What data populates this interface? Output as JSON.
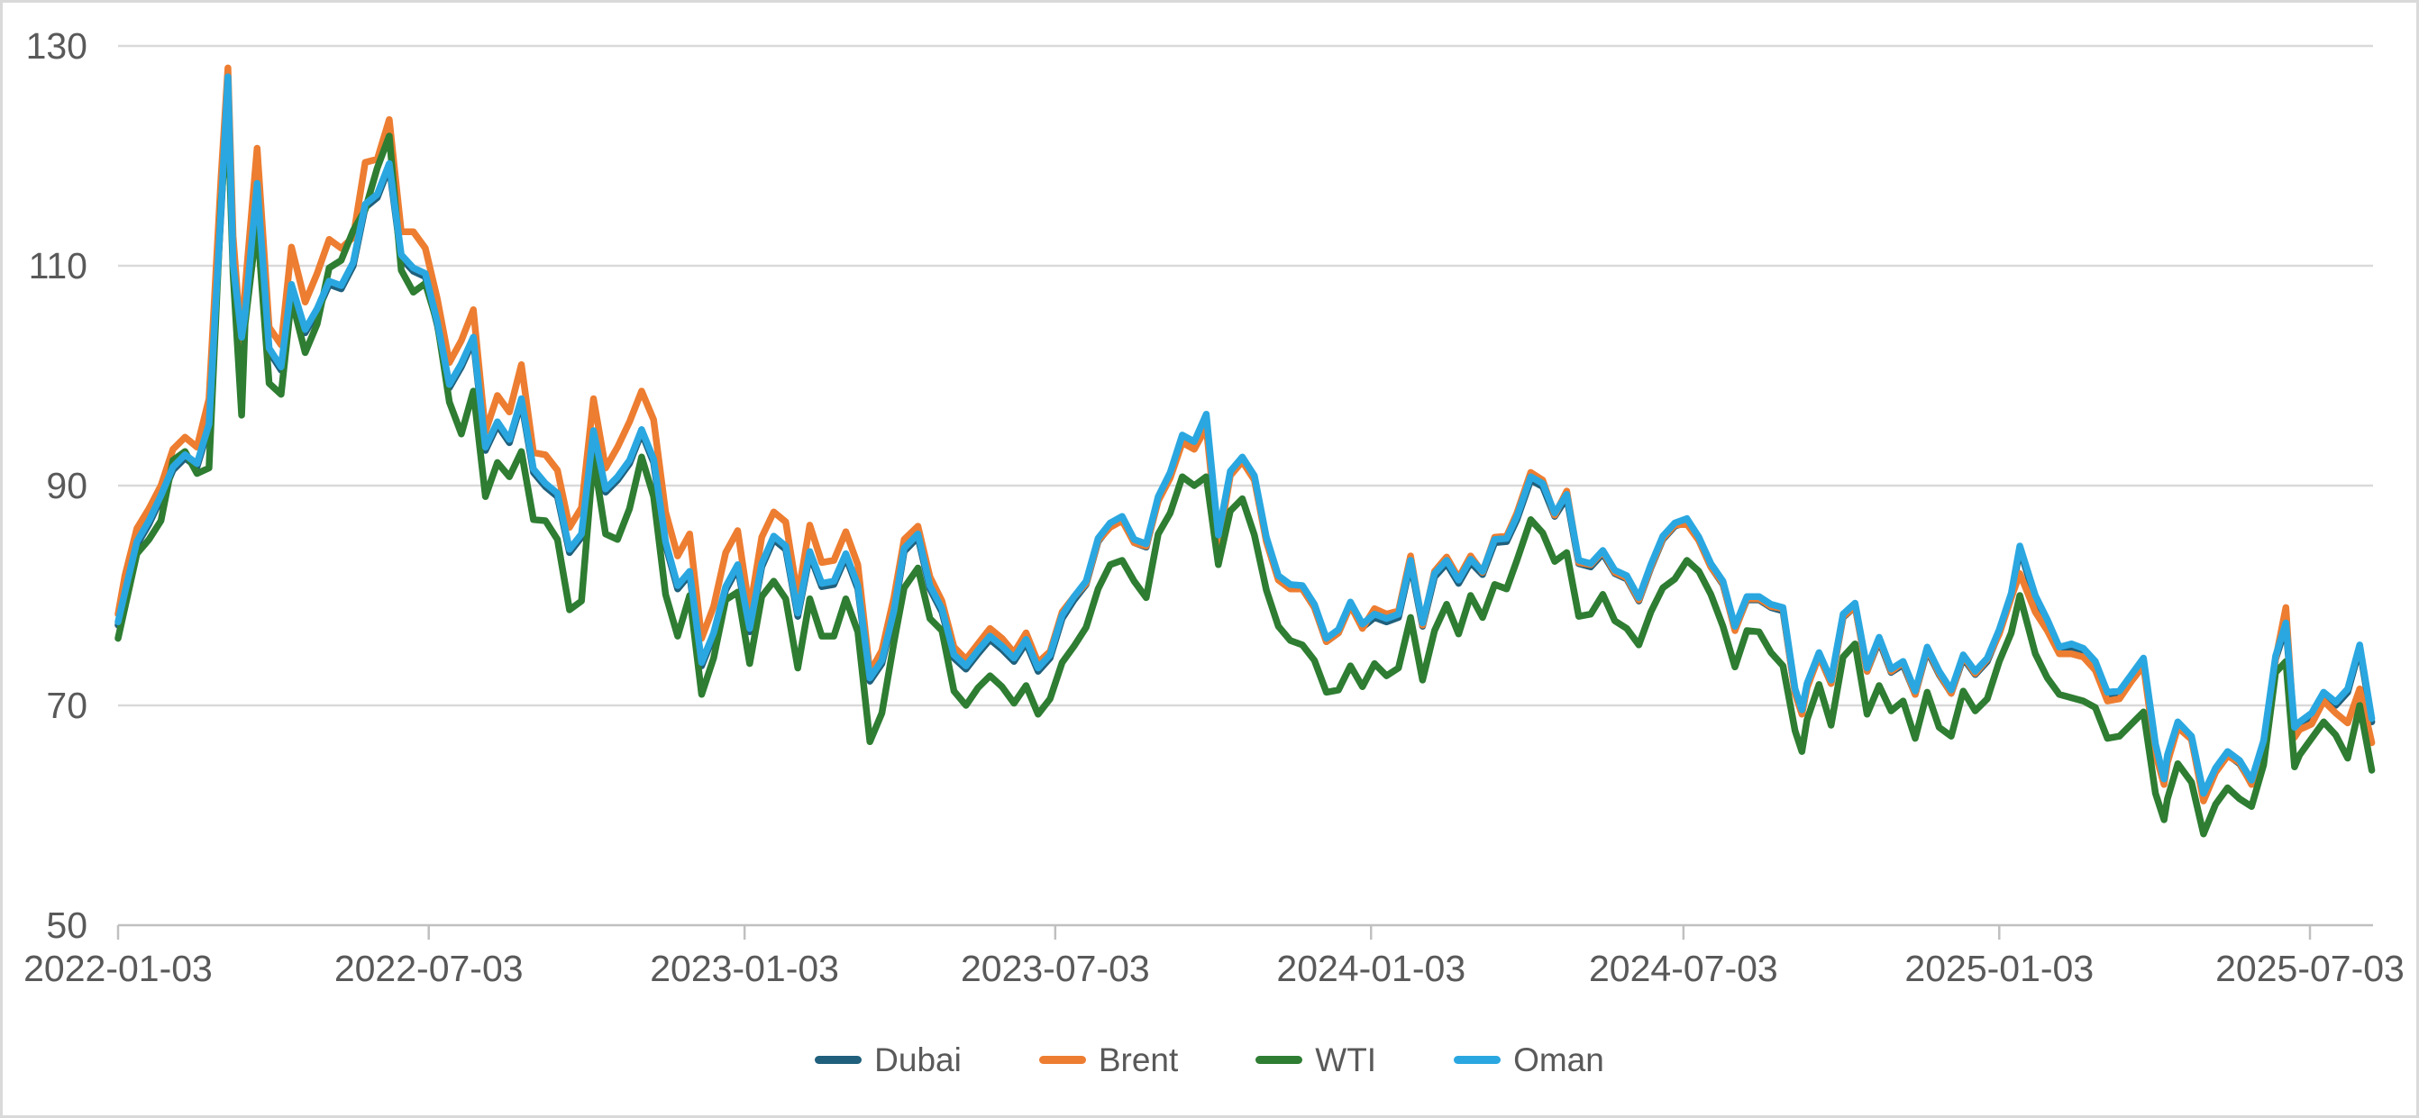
{
  "chart": {
    "background": "#FFFFFF",
    "border_color": "#D9D9D9",
    "grid_color": "#D9D9D9",
    "axis_color": "#C0C0C0",
    "label_color": "#595959"
  },
  "chart_data": {
    "type": "line",
    "title": "",
    "xlabel": "",
    "ylabel": "",
    "ylim": [
      50,
      130
    ],
    "yticks": [
      50,
      70,
      90,
      110,
      130
    ],
    "xticks": [
      "2022-01-03",
      "2022-07-03",
      "2023-01-03",
      "2023-07-03",
      "2024-01-03",
      "2024-07-03",
      "2025-01-03",
      "2025-07-03"
    ],
    "grid": "horizontal",
    "legend_position": "bottom",
    "x": [
      "2022-01-03",
      "2022-01-07",
      "2022-01-14",
      "2022-01-21",
      "2022-01-28",
      "2022-02-04",
      "2022-02-11",
      "2022-02-18",
      "2022-02-25",
      "2022-03-04",
      "2022-03-08",
      "2022-03-11",
      "2022-03-16",
      "2022-03-18",
      "2022-03-25",
      "2022-04-01",
      "2022-04-08",
      "2022-04-14",
      "2022-04-22",
      "2022-04-29",
      "2022-05-06",
      "2022-05-13",
      "2022-05-20",
      "2022-05-27",
      "2022-06-03",
      "2022-06-10",
      "2022-06-17",
      "2022-06-24",
      "2022-07-01",
      "2022-07-08",
      "2022-07-15",
      "2022-07-22",
      "2022-07-29",
      "2022-08-05",
      "2022-08-12",
      "2022-08-19",
      "2022-08-26",
      "2022-09-02",
      "2022-09-09",
      "2022-09-16",
      "2022-09-23",
      "2022-09-30",
      "2022-10-07",
      "2022-10-14",
      "2022-10-21",
      "2022-10-28",
      "2022-11-04",
      "2022-11-11",
      "2022-11-18",
      "2022-11-25",
      "2022-12-02",
      "2022-12-09",
      "2022-12-16",
      "2022-12-23",
      "2022-12-30",
      "2023-01-06",
      "2023-01-13",
      "2023-01-20",
      "2023-01-27",
      "2023-02-03",
      "2023-02-10",
      "2023-02-17",
      "2023-02-24",
      "2023-03-03",
      "2023-03-10",
      "2023-03-17",
      "2023-03-24",
      "2023-03-31",
      "2023-04-06",
      "2023-04-14",
      "2023-04-21",
      "2023-04-28",
      "2023-05-05",
      "2023-05-12",
      "2023-05-19",
      "2023-05-26",
      "2023-06-02",
      "2023-06-09",
      "2023-06-16",
      "2023-06-23",
      "2023-06-30",
      "2023-07-07",
      "2023-07-14",
      "2023-07-21",
      "2023-07-28",
      "2023-08-04",
      "2023-08-11",
      "2023-08-18",
      "2023-08-25",
      "2023-09-01",
      "2023-09-08",
      "2023-09-15",
      "2023-09-22",
      "2023-09-29",
      "2023-10-06",
      "2023-10-13",
      "2023-10-20",
      "2023-10-27",
      "2023-11-03",
      "2023-11-10",
      "2023-11-17",
      "2023-11-24",
      "2023-12-01",
      "2023-12-08",
      "2023-12-15",
      "2023-12-22",
      "2023-12-29",
      "2024-01-05",
      "2024-01-12",
      "2024-01-19",
      "2024-01-26",
      "2024-02-02",
      "2024-02-09",
      "2024-02-16",
      "2024-02-23",
      "2024-03-01",
      "2024-03-08",
      "2024-03-15",
      "2024-03-22",
      "2024-03-28",
      "2024-04-05",
      "2024-04-12",
      "2024-04-19",
      "2024-04-26",
      "2024-05-03",
      "2024-05-10",
      "2024-05-17",
      "2024-05-24",
      "2024-05-31",
      "2024-06-07",
      "2024-06-14",
      "2024-06-21",
      "2024-06-28",
      "2024-07-05",
      "2024-07-12",
      "2024-07-19",
      "2024-07-26",
      "2024-08-02",
      "2024-08-09",
      "2024-08-16",
      "2024-08-23",
      "2024-08-30",
      "2024-09-06",
      "2024-09-10",
      "2024-09-13",
      "2024-09-20",
      "2024-09-27",
      "2024-10-04",
      "2024-10-11",
      "2024-10-18",
      "2024-10-25",
      "2024-11-01",
      "2024-11-08",
      "2024-11-15",
      "2024-11-22",
      "2024-11-29",
      "2024-12-06",
      "2024-12-13",
      "2024-12-20",
      "2024-12-27",
      "2025-01-03",
      "2025-01-10",
      "2025-01-15",
      "2025-01-24",
      "2025-01-31",
      "2025-02-07",
      "2025-02-14",
      "2025-02-21",
      "2025-02-28",
      "2025-03-07",
      "2025-03-14",
      "2025-03-21",
      "2025-03-28",
      "2025-04-04",
      "2025-04-09",
      "2025-04-11",
      "2025-04-17",
      "2025-04-25",
      "2025-05-02",
      "2025-05-09",
      "2025-05-16",
      "2025-05-23",
      "2025-05-30",
      "2025-06-06",
      "2025-06-13",
      "2025-06-19",
      "2025-06-24",
      "2025-06-27",
      "2025-07-04",
      "2025-07-11",
      "2025-07-18",
      "2025-07-25",
      "2025-08-01",
      "2025-08-08"
    ],
    "series": [
      {
        "name": "Dubai",
        "color": "#20607C",
        "values": [
          77.3,
          80.0,
          84.6,
          86.5,
          88.8,
          91.4,
          92.5,
          91.7,
          95.3,
          114.9,
          126.9,
          109.9,
          103.2,
          105.2,
          117.2,
          102.2,
          100.5,
          108.0,
          103.9,
          105.8,
          108.3,
          107.9,
          110.0,
          115.3,
          116.2,
          119.0,
          110.7,
          109.5,
          109.0,
          104.6,
          98.9,
          100.8,
          103.2,
          93.2,
          95.5,
          93.9,
          97.6,
          91.2,
          89.9,
          89.0,
          83.9,
          85.3,
          94.7,
          89.4,
          90.5,
          92.0,
          94.8,
          92.1,
          84.6,
          80.6,
          81.9,
          73.6,
          76.3,
          80.5,
          82.5,
          76.7,
          82.6,
          85.1,
          84.2,
          78.1,
          83.7,
          80.8,
          81.0,
          83.5,
          80.6,
          72.2,
          73.8,
          78.3,
          84.0,
          85.3,
          80.6,
          78.5,
          74.3,
          73.3,
          74.7,
          76.0,
          75.1,
          74.0,
          75.7,
          73.1,
          74.3,
          77.9,
          79.6,
          81.0,
          84.9,
          86.3,
          86.9,
          84.8,
          84.4,
          88.7,
          90.9,
          94.3,
          93.7,
          96.2,
          85.2,
          91.0,
          92.3,
          90.6,
          85.0,
          81.5,
          80.7,
          80.6,
          78.9,
          75.8,
          76.6,
          79.1,
          77.1,
          78.0,
          77.6,
          78.0,
          82.9,
          77.2,
          81.7,
          82.9,
          81.1,
          83.0,
          81.9,
          84.8,
          84.9,
          86.9,
          90.5,
          89.9,
          87.2,
          88.9,
          82.9,
          82.6,
          83.8,
          82.0,
          81.5,
          79.5,
          82.5,
          85.1,
          86.3,
          86.7,
          85.0,
          82.6,
          81.0,
          76.9,
          79.6,
          79.6,
          78.9,
          78.6,
          71.2,
          69.3,
          71.7,
          74.5,
          72.0,
          78.0,
          79.0,
          73.1,
          75.9,
          73.0,
          73.7,
          71.0,
          75.0,
          72.8,
          71.1,
          74.3,
          72.8,
          74.0,
          76.6,
          79.9,
          84.2,
          79.7,
          77.5,
          75.0,
          75.3,
          74.9,
          73.7,
          70.9,
          71.0,
          72.5,
          74.0,
          66.2,
          63.0,
          65.2,
          68.2,
          66.9,
          61.7,
          64.0,
          65.5,
          64.7,
          62.9,
          66.5,
          74.2,
          77.2,
          67.7,
          68.2,
          69.0,
          70.9,
          70.0,
          71.2,
          75.2,
          68.5
        ]
      },
      {
        "name": "Brent",
        "color": "#ED7D31",
        "values": [
          78.3,
          81.8,
          86.1,
          87.9,
          90.0,
          93.3,
          94.4,
          93.5,
          97.9,
          118.1,
          128.0,
          112.7,
          102.5,
          107.9,
          120.7,
          104.4,
          102.8,
          111.7,
          106.7,
          109.3,
          112.4,
          111.6,
          112.6,
          119.4,
          119.7,
          123.3,
          113.1,
          113.1,
          111.6,
          107.0,
          101.2,
          103.2,
          106.0,
          94.9,
          98.2,
          96.7,
          101.0,
          93.0,
          92.8,
          91.4,
          86.2,
          88.0,
          97.9,
          91.6,
          93.5,
          95.8,
          98.6,
          96.0,
          87.6,
          83.6,
          85.6,
          76.1,
          79.0,
          83.9,
          85.9,
          78.6,
          85.3,
          87.6,
          86.7,
          79.9,
          86.4,
          83.0,
          83.2,
          85.8,
          82.8,
          73.0,
          75.0,
          79.8,
          85.1,
          86.3,
          81.7,
          79.5,
          75.3,
          74.2,
          75.6,
          77.0,
          76.1,
          74.8,
          76.6,
          73.9,
          74.9,
          78.5,
          79.9,
          81.1,
          85.0,
          86.2,
          86.8,
          84.8,
          84.5,
          88.6,
          90.7,
          93.9,
          93.3,
          95.3,
          84.6,
          90.9,
          92.2,
          90.5,
          84.9,
          81.4,
          80.6,
          80.6,
          78.9,
          75.8,
          76.6,
          79.1,
          77.0,
          78.8,
          78.3,
          78.6,
          83.6,
          77.3,
          82.2,
          83.5,
          81.6,
          83.6,
          82.1,
          85.3,
          85.4,
          87.5,
          91.2,
          90.5,
          87.3,
          89.5,
          83.0,
          82.8,
          84.0,
          82.1,
          81.6,
          79.6,
          82.6,
          85.2,
          86.4,
          86.5,
          85.0,
          82.6,
          81.1,
          76.8,
          79.7,
          79.7,
          79.0,
          78.8,
          71.1,
          69.2,
          71.6,
          74.5,
          72.0,
          78.1,
          79.0,
          73.1,
          76.1,
          73.1,
          73.9,
          71.0,
          75.2,
          72.9,
          71.1,
          74.5,
          72.9,
          74.2,
          76.5,
          79.8,
          82.0,
          78.5,
          76.8,
          74.7,
          74.7,
          74.4,
          73.2,
          70.4,
          70.6,
          72.2,
          73.6,
          65.6,
          62.8,
          64.8,
          68.0,
          66.9,
          61.3,
          63.9,
          65.4,
          64.8,
          62.8,
          66.5,
          74.2,
          78.9,
          67.1,
          67.8,
          68.3,
          70.4,
          69.3,
          68.4,
          71.5,
          66.6
        ]
      },
      {
        "name": "WTI",
        "color": "#2E7D32",
        "values": [
          76.1,
          78.9,
          83.8,
          85.1,
          86.8,
          92.3,
          93.1,
          91.1,
          91.6,
          115.7,
          123.7,
          109.3,
          96.4,
          104.7,
          113.9,
          99.3,
          98.3,
          107.0,
          102.1,
          104.7,
          109.8,
          110.5,
          113.2,
          115.1,
          118.9,
          121.8,
          109.6,
          107.6,
          108.4,
          104.8,
          97.6,
          94.7,
          98.6,
          89.0,
          92.1,
          90.8,
          93.1,
          86.9,
          86.8,
          85.1,
          78.7,
          79.5,
          92.6,
          85.6,
          85.1,
          87.9,
          92.6,
          89.0,
          80.1,
          76.3,
          80.0,
          71.0,
          74.3,
          79.6,
          80.3,
          73.8,
          79.9,
          81.3,
          79.7,
          73.4,
          79.7,
          76.3,
          76.3,
          79.7,
          76.7,
          66.7,
          69.3,
          75.7,
          80.7,
          82.5,
          77.9,
          76.8,
          71.3,
          70.0,
          71.6,
          72.7,
          71.7,
          70.2,
          71.8,
          69.2,
          70.6,
          73.9,
          75.4,
          77.1,
          80.6,
          82.8,
          83.2,
          81.3,
          79.8,
          85.6,
          87.5,
          90.8,
          90.0,
          90.8,
          82.8,
          87.7,
          88.8,
          85.5,
          80.5,
          77.2,
          75.9,
          75.5,
          74.1,
          71.2,
          71.4,
          73.6,
          71.7,
          73.8,
          72.7,
          73.4,
          78.0,
          72.3,
          76.8,
          79.2,
          76.5,
          80.0,
          78.0,
          81.0,
          80.6,
          83.2,
          86.9,
          85.7,
          83.1,
          83.9,
          78.1,
          78.3,
          80.1,
          77.7,
          77.0,
          75.5,
          78.5,
          80.7,
          81.5,
          83.2,
          82.2,
          80.1,
          77.2,
          73.5,
          76.8,
          76.7,
          74.8,
          73.6,
          67.7,
          65.8,
          68.7,
          71.9,
          68.2,
          74.4,
          75.6,
          69.2,
          71.8,
          69.5,
          70.4,
          67.0,
          71.2,
          68.0,
          67.2,
          71.3,
          69.5,
          70.6,
          74.0,
          76.6,
          80.0,
          74.7,
          72.5,
          71.0,
          70.7,
          70.4,
          69.8,
          67.0,
          67.2,
          68.3,
          69.4,
          62.0,
          59.6,
          61.5,
          64.7,
          63.0,
          58.3,
          61.0,
          62.5,
          61.5,
          60.8,
          64.6,
          73.0,
          74.0,
          64.4,
          65.5,
          67.0,
          68.5,
          67.3,
          65.2,
          70.0,
          64.1
        ]
      },
      {
        "name": "Oman",
        "color": "#2AA7E0",
        "values": [
          77.6,
          80.3,
          84.9,
          86.8,
          89.1,
          91.7,
          92.8,
          92.0,
          95.6,
          115.2,
          127.2,
          110.2,
          103.5,
          105.5,
          117.5,
          102.5,
          100.8,
          108.3,
          104.2,
          106.1,
          108.6,
          108.2,
          110.3,
          115.6,
          116.5,
          119.3,
          111.0,
          109.8,
          109.3,
          104.9,
          99.2,
          101.1,
          103.5,
          93.5,
          95.8,
          94.2,
          97.9,
          91.5,
          90.2,
          89.3,
          84.2,
          85.6,
          95.0,
          89.7,
          90.8,
          92.3,
          95.1,
          92.4,
          84.9,
          80.9,
          82.2,
          73.9,
          76.6,
          80.8,
          82.8,
          77.0,
          82.9,
          85.4,
          84.5,
          78.4,
          84.0,
          81.1,
          81.3,
          83.8,
          80.9,
          72.5,
          74.1,
          78.6,
          84.3,
          85.6,
          80.9,
          78.8,
          74.6,
          73.6,
          75.0,
          76.3,
          75.4,
          74.3,
          76.0,
          73.4,
          74.6,
          78.2,
          79.9,
          81.3,
          85.2,
          86.6,
          87.2,
          85.1,
          84.7,
          89.0,
          91.2,
          94.6,
          94.0,
          96.5,
          85.5,
          91.3,
          92.6,
          90.9,
          85.3,
          81.8,
          81.0,
          80.9,
          79.2,
          76.1,
          76.9,
          79.4,
          77.4,
          78.3,
          77.9,
          78.3,
          83.2,
          77.5,
          82.0,
          83.2,
          81.4,
          83.3,
          82.2,
          85.1,
          85.2,
          87.2,
          90.8,
          90.2,
          87.5,
          89.2,
          83.2,
          82.9,
          84.1,
          82.3,
          81.8,
          79.8,
          82.8,
          85.4,
          86.6,
          87.0,
          85.3,
          82.9,
          81.3,
          77.2,
          79.9,
          79.9,
          79.2,
          78.9,
          71.5,
          69.6,
          72.0,
          74.8,
          72.3,
          78.3,
          79.3,
          73.4,
          76.2,
          73.3,
          74.0,
          71.3,
          75.3,
          73.1,
          71.4,
          74.6,
          73.1,
          74.3,
          76.9,
          80.2,
          84.5,
          80.0,
          77.8,
          75.3,
          75.6,
          75.2,
          74.0,
          71.2,
          71.3,
          72.8,
          74.3,
          66.5,
          63.3,
          65.5,
          68.5,
          67.2,
          62.0,
          64.3,
          65.8,
          65.0,
          63.2,
          66.8,
          74.5,
          77.5,
          68.0,
          68.5,
          69.3,
          71.2,
          70.3,
          71.5,
          75.5,
          68.8
        ]
      }
    ]
  }
}
